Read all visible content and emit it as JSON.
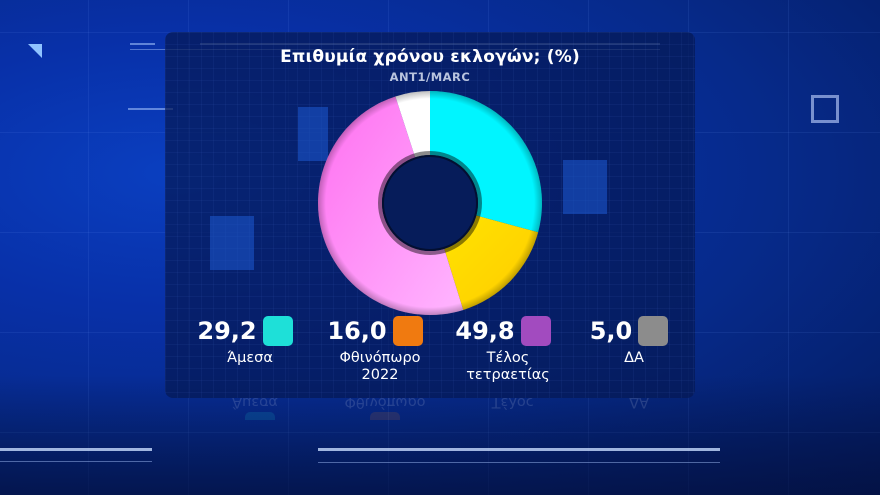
{
  "chart_data": {
    "type": "pie",
    "variant": "donut",
    "title": "Επιθυμία χρόνου εκλογών; (%)",
    "subtitle": "ANT1/MARC",
    "categories": [
      "Άμεσα",
      "Φθινόπωρο 2022",
      "Τέλος τετραετίας",
      "ΔΑ"
    ],
    "values": [
      29.2,
      16.0,
      49.8,
      5.0
    ],
    "value_labels": [
      "29,2",
      "16,0",
      "49,8",
      "5,0"
    ],
    "slice_colors": [
      "#00f5ff",
      "#ffe600",
      "#ff8cf5",
      "#ffffff"
    ],
    "legend_colors": [
      "#1ee0d8",
      "#f07a10",
      "#a24bbf",
      "#8c8c8c"
    ],
    "start_angle": "12 o'clock",
    "direction": "clockwise",
    "legend_position": "bottom",
    "unit": "%"
  },
  "panel": {
    "title": "Επιθυμία χρόνου εκλογών; (%)",
    "subtitle": "ANT1/MARC"
  },
  "legend": [
    {
      "value": "29,2",
      "label": "Άμεσα",
      "color": "#1ee0d8"
    },
    {
      "value": "16,0",
      "label": "Φθινόπωρο\n2022",
      "color": "#f07a10"
    },
    {
      "value": "49,8",
      "label": "Τέλος\nτετραετίας",
      "color": "#a24bbf"
    },
    {
      "value": "5,0",
      "label": "ΔΑ",
      "color": "#8c8c8c"
    }
  ],
  "reflection": [
    {
      "label": "Άμεσα"
    },
    {
      "label": "Φθινόπωρο"
    },
    {
      "label": "Τέλος"
    },
    {
      "label": "ΔΑ"
    }
  ]
}
